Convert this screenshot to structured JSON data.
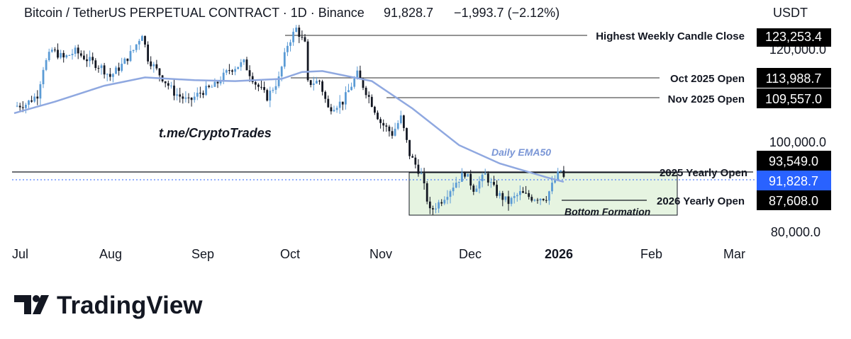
{
  "header": {
    "title": "Bitcoin / TetherUS PERPETUAL CONTRACT · 1D · Binance",
    "price": "91,828.7",
    "change": "−1,993.7 (−2.12%)"
  },
  "price_axis": {
    "currency": "USDT",
    "ticks": [
      "120,000.0",
      "100,000.0",
      "80,000.0"
    ]
  },
  "time_axis": {
    "labels": [
      "Jul",
      "Aug",
      "Sep",
      "Oct",
      "Nov",
      "Dec",
      "2026",
      "Feb",
      "Mar"
    ]
  },
  "levels": [
    {
      "label": "Highest Weekly Candle Close",
      "value": "123,253.4",
      "badge_color": "#000000"
    },
    {
      "label": "Oct 2025 Open",
      "value": "113,988.7",
      "badge_color": "#000000"
    },
    {
      "label": "Nov 2025 Open",
      "value": "109,557.0",
      "badge_color": "#000000"
    },
    {
      "label": "2025 Yearly Open",
      "value": "93,549.0",
      "badge_color": "#000000"
    },
    {
      "label": "2026 Yearly Open",
      "value": "87,608.0",
      "badge_color": "#000000"
    }
  ],
  "current_price_badge": {
    "value": "91,828.7",
    "color": "#2962ff"
  },
  "annotations": {
    "watermark": "t.me/CryptoTrades",
    "ema_label": "Daily EMA50",
    "box_label": "Bottom Formation"
  },
  "brand": {
    "name": "TradingView"
  },
  "colors": {
    "up_candle": "#5b9bd5",
    "down_candle": "#131722",
    "ema_line": "#8fa8e0",
    "box_fill": "#e6f4e1",
    "box_stroke": "#131722"
  },
  "chart_data": {
    "type": "candlestick",
    "title": "Bitcoin / TetherUS PERPETUAL CONTRACT · 1D · Binance",
    "ylim": [
      80000,
      125000
    ],
    "x_labels": [
      "Jul",
      "Aug",
      "Sep",
      "Oct",
      "Nov",
      "Dec",
      "2026",
      "Feb",
      "Mar"
    ],
    "close_path": [
      [
        "2025-07-01",
        107500
      ],
      [
        "2025-07-05",
        108000
      ],
      [
        "2025-07-09",
        110000
      ],
      [
        "2025-07-11",
        116000
      ],
      [
        "2025-07-14",
        119800
      ],
      [
        "2025-07-18",
        118000
      ],
      [
        "2025-07-22",
        119500
      ],
      [
        "2025-07-26",
        117800
      ],
      [
        "2025-07-31",
        116000
      ],
      [
        "2025-08-03",
        114000
      ],
      [
        "2025-08-07",
        116500
      ],
      [
        "2025-08-11",
        119800
      ],
      [
        "2025-08-14",
        123500
      ],
      [
        "2025-08-16",
        118000
      ],
      [
        "2025-08-20",
        114500
      ],
      [
        "2025-08-25",
        110500
      ],
      [
        "2025-08-30",
        108500
      ],
      [
        "2025-09-03",
        110500
      ],
      [
        "2025-09-08",
        112000
      ],
      [
        "2025-09-13",
        115500
      ],
      [
        "2025-09-18",
        117000
      ],
      [
        "2025-09-22",
        112500
      ],
      [
        "2025-09-26",
        109500
      ],
      [
        "2025-09-30",
        113500
      ],
      [
        "2025-10-03",
        121000
      ],
      [
        "2025-10-06",
        124500
      ],
      [
        "2025-10-09",
        121000
      ],
      [
        "2025-10-10",
        112500
      ],
      [
        "2025-10-14",
        113000
      ],
      [
        "2025-10-17",
        107000
      ],
      [
        "2025-10-22",
        108500
      ],
      [
        "2025-10-27",
        114500
      ],
      [
        "2025-10-31",
        109500
      ],
      [
        "2025-11-04",
        104000
      ],
      [
        "2025-11-08",
        101500
      ],
      [
        "2025-11-11",
        105000
      ],
      [
        "2025-11-14",
        97000
      ],
      [
        "2025-11-18",
        92500
      ],
      [
        "2025-11-21",
        84500
      ],
      [
        "2025-11-25",
        87000
      ],
      [
        "2025-11-30",
        91000
      ],
      [
        "2025-12-03",
        93000
      ],
      [
        "2025-12-06",
        89500
      ],
      [
        "2025-12-10",
        92500
      ],
      [
        "2025-12-14",
        88500
      ],
      [
        "2025-12-18",
        86500
      ],
      [
        "2025-12-22",
        88500
      ],
      [
        "2025-12-26",
        87500
      ],
      [
        "2025-12-31",
        87600
      ],
      [
        "2026-01-03",
        91500
      ],
      [
        "2026-01-05",
        93500
      ],
      [
        "2026-01-06",
        91828.7
      ]
    ],
    "series": [
      {
        "name": "Daily EMA50",
        "points": [
          [
            "2025-07-01",
            106000
          ],
          [
            "2025-07-15",
            108500
          ],
          [
            "2025-08-01",
            112000
          ],
          [
            "2025-08-15",
            113800
          ],
          [
            "2025-09-01",
            113200
          ],
          [
            "2025-09-15",
            113000
          ],
          [
            "2025-10-01",
            113500
          ],
          [
            "2025-10-08",
            115000
          ],
          [
            "2025-10-15",
            115200
          ],
          [
            "2025-11-01",
            113000
          ],
          [
            "2025-11-15",
            107000
          ],
          [
            "2025-12-01",
            99000
          ],
          [
            "2025-12-15",
            95000
          ],
          [
            "2025-12-31",
            92000
          ],
          [
            "2026-01-06",
            91000
          ]
        ]
      }
    ],
    "horizontal_levels": [
      {
        "name": "Highest Weekly Candle Close",
        "value": 123253.4
      },
      {
        "name": "Oct 2025 Open",
        "value": 113988.7
      },
      {
        "name": "Nov 2025 Open",
        "value": 109557.0
      },
      {
        "name": "2025 Yearly Open",
        "value": 93549.0
      },
      {
        "name": "2026 Yearly Open",
        "value": 87608.0
      }
    ],
    "current_price": 91828.7,
    "box": {
      "name": "Bottom Formation",
      "x_from": "2025-11-14",
      "x_to": "2026-02-06",
      "y_from": 84500,
      "y_to": 93549
    },
    "xlabel": "",
    "ylabel": ""
  }
}
